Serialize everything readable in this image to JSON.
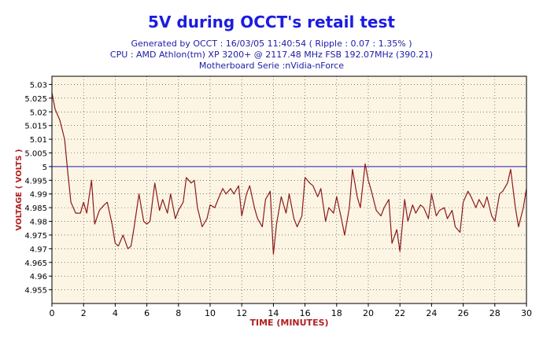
{
  "chart_data": {
    "type": "line",
    "title": "5V during OCCT's retail test",
    "subtitles": [
      "Generated by OCCT : 16/03/05 11:40:54 ( Ripple : 0.07 : 1.35% )",
      "CPU : AMD Athlon(tm) XP 3200+ @ 2117.48 MHz FSB 192.07MHz (390.21)",
      "Motherboard Serie :nVidia-nForce"
    ],
    "xlabel": "TIME (MINUTES)",
    "ylabel": "VOLTAGE ( VOLTS )",
    "xlim": [
      0,
      30
    ],
    "ylim": [
      4.95,
      5.033
    ],
    "xticks": [
      0,
      2,
      4,
      6,
      8,
      10,
      12,
      14,
      16,
      18,
      20,
      22,
      24,
      26,
      28,
      30
    ],
    "yticks": [
      4.955,
      4.96,
      4.965,
      4.97,
      4.975,
      4.98,
      4.985,
      4.99,
      4.995,
      5,
      5.005,
      5.01,
      5.015,
      5.02,
      5.025,
      5.03
    ],
    "ytick_labels": [
      "4.955",
      "4.96",
      "4.965",
      "4.97",
      "4.975",
      "4.98",
      "4.985",
      "4.99",
      "4.995",
      "5",
      "5.005",
      "5.01",
      "5.015",
      "5.02",
      "5.025",
      "5.03"
    ],
    "grid": true,
    "reference_line": 5.0,
    "colors": {
      "line": "#8b1a1a",
      "reference": "#1c1cc8",
      "plot_bg": "#fdf5e4",
      "title": "#1c1ce0",
      "axis_label": "#b02020"
    },
    "series": [
      {
        "x": [
          0,
          0.2,
          0.5,
          0.8,
          1.0,
          1.2,
          1.5,
          1.8,
          2.0,
          2.2,
          2.5,
          2.7,
          3.0,
          3.3,
          3.5,
          3.8,
          4.0,
          4.2,
          4.5,
          4.8,
          5.0,
          5.2,
          5.5,
          5.8,
          6.0,
          6.2,
          6.5,
          6.8,
          7.0,
          7.3,
          7.5,
          7.8,
          8.0,
          8.3,
          8.5,
          8.8,
          9.0,
          9.2,
          9.5,
          9.8,
          10.0,
          10.3,
          10.5,
          10.8,
          11.0,
          11.3,
          11.5,
          11.8,
          12.0,
          12.3,
          12.5,
          12.8,
          13.0,
          13.3,
          13.5,
          13.8,
          14.0,
          14.2,
          14.5,
          14.8,
          15.0,
          15.3,
          15.5,
          15.8,
          16.0,
          16.3,
          16.5,
          16.8,
          17.0,
          17.3,
          17.5,
          17.8,
          18.0,
          18.3,
          18.5,
          18.8,
          19.0,
          19.3,
          19.5,
          19.8,
          20.0,
          20.2,
          20.5,
          20.8,
          21.0,
          21.3,
          21.5,
          21.8,
          22.0,
          22.3,
          22.5,
          22.8,
          23.0,
          23.3,
          23.5,
          23.8,
          24.0,
          24.3,
          24.5,
          24.8,
          25.0,
          25.3,
          25.5,
          25.8,
          26.0,
          26.3,
          26.5,
          26.8,
          27.0,
          27.3,
          27.5,
          27.8,
          28.0,
          28.3,
          28.5,
          28.8,
          29.0,
          29.3,
          29.5,
          29.8,
          30.0
        ],
        "y": [
          5.027,
          5.021,
          5.017,
          5.01,
          4.998,
          4.987,
          4.983,
          4.983,
          4.987,
          4.983,
          4.995,
          4.979,
          4.984,
          4.986,
          4.987,
          4.979,
          4.972,
          4.971,
          4.975,
          4.97,
          4.971,
          4.978,
          4.99,
          4.98,
          4.979,
          4.98,
          4.994,
          4.984,
          4.988,
          4.983,
          4.99,
          4.981,
          4.984,
          4.987,
          4.996,
          4.994,
          4.995,
          4.985,
          4.978,
          4.981,
          4.986,
          4.985,
          4.988,
          4.992,
          4.99,
          4.992,
          4.99,
          4.993,
          4.982,
          4.99,
          4.993,
          4.985,
          4.981,
          4.978,
          4.988,
          4.991,
          4.968,
          4.979,
          4.989,
          4.983,
          4.99,
          4.981,
          4.978,
          4.982,
          4.996,
          4.994,
          4.993,
          4.989,
          4.992,
          4.98,
          4.985,
          4.983,
          4.989,
          4.981,
          4.975,
          4.985,
          4.999,
          4.989,
          4.985,
          5.001,
          4.995,
          4.991,
          4.984,
          4.982,
          4.985,
          4.988,
          4.972,
          4.977,
          4.969,
          4.988,
          4.98,
          4.986,
          4.983,
          4.986,
          4.985,
          4.981,
          4.99,
          4.982,
          4.984,
          4.985,
          4.981,
          4.984,
          4.978,
          4.976,
          4.987,
          4.991,
          4.989,
          4.985,
          4.988,
          4.985,
          4.989,
          4.982,
          4.98,
          4.99,
          4.991,
          4.994,
          4.999,
          4.985,
          4.978,
          4.985,
          4.992
        ]
      }
    ]
  }
}
